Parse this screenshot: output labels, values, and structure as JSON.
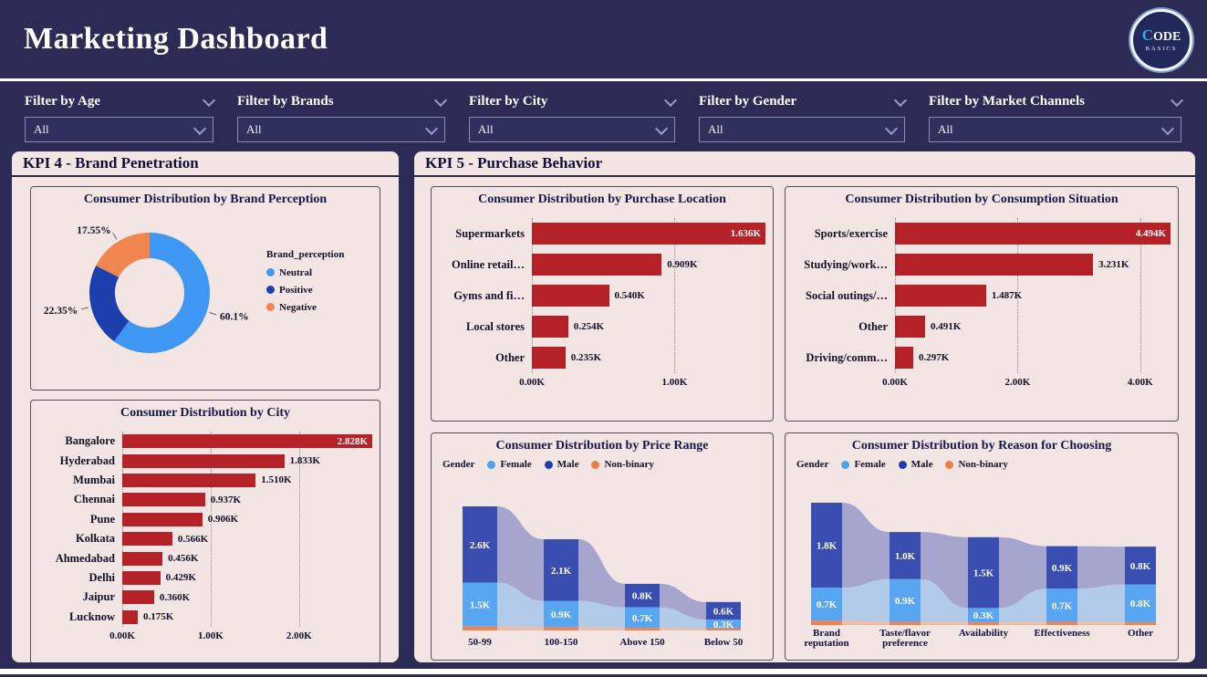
{
  "header": {
    "title": "Marketing Dashboard",
    "logo_line1": "CODE",
    "logo_line2": "BASICS"
  },
  "filters": [
    {
      "label": "Filter by Age",
      "value": "All"
    },
    {
      "label": "Filter by Brands",
      "value": "All"
    },
    {
      "label": "Filter by City",
      "value": "All"
    },
    {
      "label": "Filter by Gender",
      "value": "All"
    },
    {
      "label": "Filter by Market Channels",
      "value": "All"
    }
  ],
  "panels": {
    "kpi4": "KPI 4 - Brand Penetration",
    "kpi5": "KPI 5 - Purchase Behavior"
  },
  "chart_data": [
    {
      "id": "brand_perception",
      "type": "pie",
      "title": "Consumer Distribution by Brand Perception",
      "legend_title": "Brand_perception",
      "slices": [
        {
          "label": "Neutral",
          "value_pct": 60.1,
          "display": "60.1%",
          "color": "#3e97f2"
        },
        {
          "label": "Positive",
          "value_pct": 22.35,
          "display": "22.35%",
          "color": "#1c3fad"
        },
        {
          "label": "Negative",
          "value_pct": 17.55,
          "display": "17.55%",
          "color": "#f0854f"
        }
      ]
    },
    {
      "id": "city",
      "type": "bar",
      "title": "Consumer Distribution by City",
      "bar_color": "#b42227",
      "categories": [
        "Bangalore",
        "Hyderabad",
        "Mumbai",
        "Chennai",
        "Pune",
        "Kolkata",
        "Ahmedabad",
        "Delhi",
        "Jaipur",
        "Lucknow"
      ],
      "values": [
        2828,
        1833,
        1510,
        937,
        906,
        566,
        456,
        429,
        360,
        175
      ],
      "value_labels": [
        "2.828K",
        "1.833K",
        "1.510K",
        "0.937K",
        "0.906K",
        "0.566K",
        "0.456K",
        "0.429K",
        "0.360K",
        "0.175K"
      ],
      "xmax": 2828,
      "ticks": [
        {
          "label": "0.00K",
          "value": 0
        },
        {
          "label": "1.00K",
          "value": 1000
        },
        {
          "label": "2.00K",
          "value": 2000
        }
      ]
    },
    {
      "id": "purchase_location",
      "type": "bar",
      "title": "Consumer Distribution by Purchase Location",
      "bar_color": "#b42227",
      "categories": [
        "Supermarkets",
        "Online retail…",
        "Gyms and fi…",
        "Local stores",
        "Other"
      ],
      "values": [
        1636,
        909,
        540,
        254,
        235
      ],
      "value_labels": [
        "1.636K",
        "0.909K",
        "0.540K",
        "0.254K",
        "0.235K"
      ],
      "xmax": 1636,
      "ticks": [
        {
          "label": "0.00K",
          "value": 0
        },
        {
          "label": "1.00K",
          "value": 1000
        }
      ]
    },
    {
      "id": "consumption_situation",
      "type": "bar",
      "title": "Consumer Distribution by Consumption Situation",
      "bar_color": "#b42227",
      "categories": [
        "Sports/exercise",
        "Studying/work…",
        "Social outings/…",
        "Other",
        "Driving/comm…"
      ],
      "values": [
        4494,
        3231,
        1487,
        491,
        297
      ],
      "value_labels": [
        "4.494K",
        "3.231K",
        "1.487K",
        "0.491K",
        "0.297K"
      ],
      "xmax": 4494,
      "ticks": [
        {
          "label": "0.00K",
          "value": 0
        },
        {
          "label": "2.00K",
          "value": 2000
        },
        {
          "label": "4.00K",
          "value": 4000
        }
      ]
    },
    {
      "id": "price_range",
      "type": "ribbon",
      "title": "Consumer Distribution by Price Range",
      "legend_title": "Gender",
      "legend_order": [
        "Female",
        "Male",
        "Non-binary"
      ],
      "categories": [
        "50-99",
        "100-150",
        "Above 150",
        "Below 50"
      ],
      "series": [
        {
          "name": "Male",
          "color": "#3a4db0",
          "legend_color": "#1c3fad",
          "values": [
            2600,
            2100,
            800,
            600
          ],
          "labels": [
            "2.6K",
            "2.1K",
            "0.8K",
            "0.6K"
          ]
        },
        {
          "name": "Female",
          "color": "#58a6f1",
          "legend_color": "#4da2f0",
          "values": [
            1500,
            900,
            700,
            300
          ],
          "labels": [
            "1.5K",
            "0.9K",
            "0.7K",
            "0.3K"
          ]
        },
        {
          "name": "Non-binary",
          "color": "#ee8350",
          "legend_color": "#ed7d45",
          "values": [
            130,
            110,
            90,
            70
          ],
          "labels": [
            "",
            "",
            "",
            ""
          ]
        }
      ]
    },
    {
      "id": "reason",
      "type": "ribbon",
      "title": "Consumer Distribution by Reason for Choosing",
      "legend_title": "Gender",
      "legend_order": [
        "Female",
        "Male",
        "Non-binary"
      ],
      "categories": [
        "Brand\nreputation",
        "Taste/flavor\npreference",
        "Availability",
        "Effectiveness",
        "Other"
      ],
      "series": [
        {
          "name": "Male",
          "color": "#3a4db0",
          "legend_color": "#1c3fad",
          "values": [
            1800,
            1000,
            1500,
            900,
            800
          ],
          "labels": [
            "1.8K",
            "1.0K",
            "1.5K",
            "0.9K",
            "0.8K"
          ]
        },
        {
          "name": "Female",
          "color": "#58a6f1",
          "legend_color": "#4da2f0",
          "values": [
            700,
            900,
            300,
            700,
            800
          ],
          "labels": [
            "0.7K",
            "0.9K",
            "0.3K",
            "0.7K",
            "0.8K"
          ]
        },
        {
          "name": "Non-binary",
          "color": "#ee8350",
          "legend_color": "#ed7d45",
          "values": [
            90,
            70,
            60,
            70,
            60
          ],
          "labels": [
            "",
            "",
            "",
            "",
            ""
          ]
        }
      ]
    }
  ]
}
